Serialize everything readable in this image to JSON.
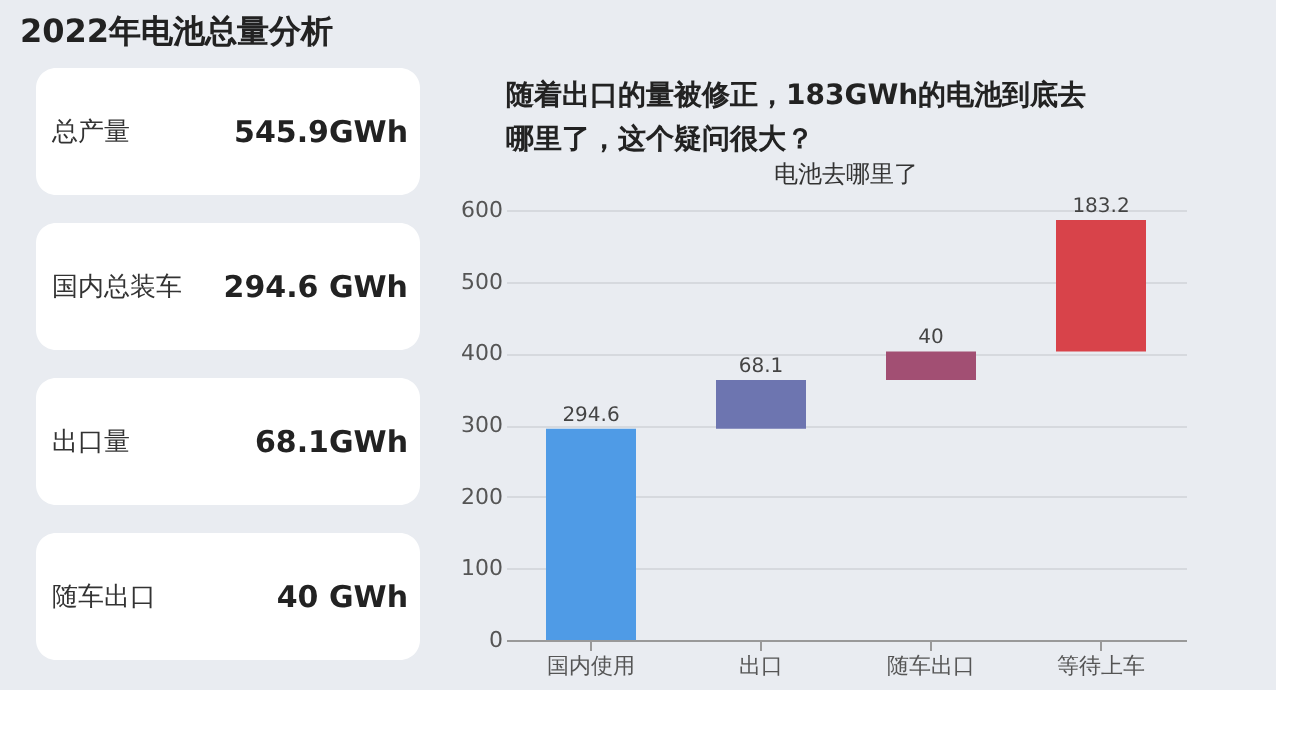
{
  "chart_data": {
    "type": "bar",
    "title": "2022年电池总量分析",
    "subtitle": "随着出口的量被修正，183GWh的电池到底去哪里了，这个疑问很大？",
    "annotations": [
      "总产量 545.9GWh",
      "国内总装车 294.6 GWh",
      "出口量 68.1GWh",
      "随车出口 40 GWh"
    ],
    "categories": [
      "国内使用",
      "出口",
      "随车出口",
      "等待上车"
    ],
    "values": [
      294.6,
      68.1,
      40,
      183.2
    ],
    "base": [
      0,
      294.6,
      362.7,
      402.7
    ],
    "colors": [
      "#4f9be6",
      "#6d75b0",
      "#a24f73",
      "#d8434a"
    ],
    "xlabel": "电池去哪里了",
    "ylim": [
      0,
      600
    ],
    "yticks": [
      0,
      100,
      200,
      300,
      400,
      500,
      600
    ],
    "grid": "y",
    "data_labels": true,
    "legend": false
  }
}
